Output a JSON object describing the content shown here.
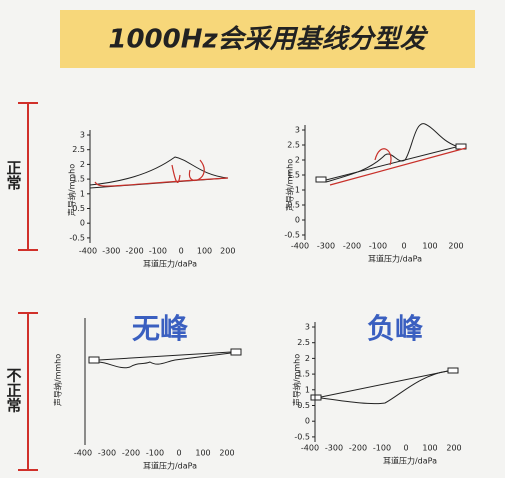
{
  "title": "1000Hz会采用基线分型发",
  "groups": [
    {
      "label": "正常"
    },
    {
      "label": "不正常"
    }
  ],
  "panels": [
    {
      "y_label": "声导纳/mmho",
      "x_label": "耳道压力/daPa",
      "y_ticks": [
        3,
        2.5,
        2,
        1.5,
        1,
        0.5,
        0,
        -0.5
      ],
      "x_ticks": [
        -400,
        -300,
        -200,
        -100,
        0,
        100,
        200
      ]
    },
    {
      "y_label": "声导纳/mmho",
      "x_label": "耳道压力/daPa",
      "y_ticks": [
        3,
        2.5,
        2,
        1.5,
        1,
        0.5,
        0,
        -0.5
      ],
      "x_ticks": [
        -400,
        -300,
        -200,
        -100,
        0,
        100,
        200
      ]
    },
    {
      "annotation": "无峰",
      "y_label": "声导纳/mmho",
      "x_label": "耳道压力/daPa",
      "x_ticks": [
        -400,
        -300,
        -200,
        -100,
        0,
        100,
        200
      ]
    },
    {
      "annotation": "负峰",
      "y_label": "声导纳/mmho",
      "x_label": "耳道压力/daPa",
      "y_ticks": [
        3,
        2.5,
        2,
        1.5,
        1,
        0.5,
        0,
        -0.5
      ],
      "x_ticks": [
        -400,
        -300,
        -200,
        -100,
        0,
        100,
        200
      ]
    }
  ]
}
